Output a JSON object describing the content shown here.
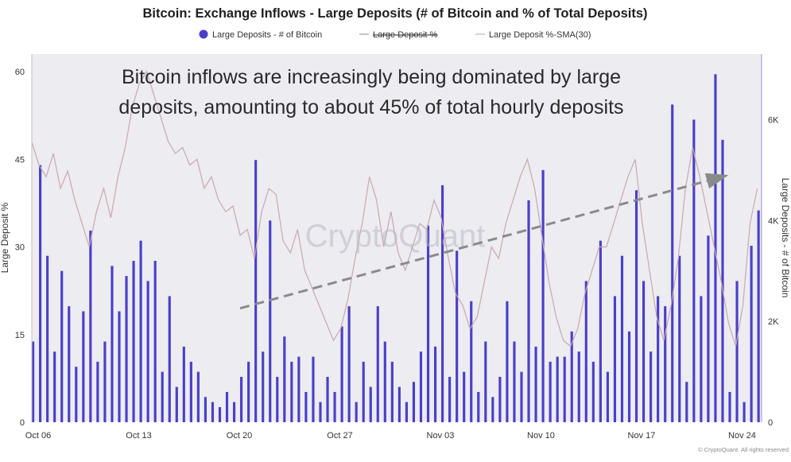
{
  "chart_data": {
    "type": "bar+line",
    "title": "Bitcoin: Exchange Inflows - Large Deposits (# of Bitcoin and % of Total Deposits)",
    "legend": {
      "placement": "top-center",
      "entries": [
        {
          "label": "Large Deposits - # of Bitcoin",
          "color": "#4b3fc8",
          "marker": "dot"
        },
        {
          "label": "Large Deposit %",
          "color": "#c9a8ad",
          "marker": "line",
          "struck": true
        },
        {
          "label": "Large Deposit %-SMA(30)",
          "color": "#d8c0c4",
          "marker": "line"
        }
      ]
    },
    "y_left": {
      "label": "Large Deposit %",
      "range": [
        0,
        63
      ],
      "ticks": [
        "0",
        "15",
        "30",
        "45",
        "60"
      ]
    },
    "y_right": {
      "label": "Large Deposits - # of Bitcoin",
      "range": [
        0,
        7300
      ],
      "ticks": [
        "0",
        "2K",
        "4K",
        "6K"
      ]
    },
    "x_ticks": [
      "Oct 06",
      "Oct 13",
      "Oct 20",
      "Oct 27",
      "Nov 03",
      "Nov 10",
      "Nov 17",
      "Nov 24"
    ],
    "x_tick_days": [
      0,
      7,
      14,
      21,
      28,
      35,
      42,
      49
    ],
    "x_range_days": [
      0,
      50.8
    ],
    "grid": false,
    "annotation_lines": [
      "Bitcoin inflows are increasingly being dominated by large",
      "deposits, amounting to about 45% of total hourly deposits"
    ],
    "trend_arrow": {
      "from": {
        "day": 14.5,
        "pct": 19.5
      },
      "to": {
        "day": 48.5,
        "pct": 42.3
      },
      "color": "#8a8a8a"
    },
    "watermark": "CryptoQuant",
    "copyright": "© CryptoQuant. All rights reserved",
    "series": [
      {
        "name": "Large Deposit %",
        "axis": "left",
        "type": "line",
        "color": "#c9a8ad",
        "x_days": [
          0,
          0.5,
          1,
          1.5,
          2,
          2.5,
          3,
          3.5,
          4,
          4.5,
          5,
          5.5,
          6,
          6.5,
          7,
          7.5,
          8,
          8.5,
          9,
          9.5,
          10,
          10.5,
          11,
          11.5,
          12,
          12.5,
          13,
          13.5,
          14,
          14.5,
          15,
          15.5,
          16,
          16.5,
          17,
          17.5,
          18,
          18.5,
          19,
          19.5,
          20,
          20.5,
          21,
          21.5,
          22,
          22.5,
          23,
          23.5,
          24,
          24.5,
          25,
          25.5,
          26,
          26.5,
          27,
          27.5,
          28,
          28.5,
          29,
          29.5,
          30,
          30.5,
          31,
          31.5,
          32,
          32.5,
          33,
          33.5,
          34,
          34.5,
          35,
          35.5,
          36,
          36.5,
          37,
          37.5,
          38,
          38.5,
          39,
          39.5,
          40,
          40.5,
          41,
          41.5,
          42,
          42.5,
          43,
          43.5,
          44,
          44.5,
          45,
          45.5,
          46,
          46.5,
          47,
          47.5,
          48,
          48.5,
          49,
          49.5,
          50,
          50.5
        ],
        "values": [
          48,
          44,
          42,
          46,
          40,
          43,
          38,
          34,
          30,
          36,
          40,
          35,
          42,
          47,
          54,
          58,
          60,
          56,
          52,
          48,
          46,
          47,
          44,
          45,
          40,
          42,
          38,
          36,
          37,
          32,
          33,
          28,
          36,
          40,
          39,
          31,
          29,
          33,
          26,
          23,
          20,
          17,
          14,
          16,
          21,
          28,
          34,
          42,
          38,
          30,
          36,
          29,
          26,
          30,
          34,
          33,
          38,
          35,
          28,
          22,
          20,
          16,
          18,
          24,
          30,
          28,
          34,
          38,
          42,
          45,
          40,
          32,
          24,
          18,
          14,
          13,
          16,
          22,
          26,
          30,
          30,
          34,
          38,
          42,
          45,
          34,
          26,
          18,
          14,
          20,
          28,
          40,
          47,
          42,
          36,
          30,
          24,
          17,
          13,
          20,
          34,
          40
        ]
      },
      {
        "name": "Large Deposits - # of Bitcoin",
        "axis": "right",
        "type": "bar",
        "color": "#4b3fc8",
        "x_days": [
          0,
          0.5,
          1,
          1.5,
          2,
          2.5,
          3,
          3.5,
          4,
          4.5,
          5,
          5.5,
          6,
          6.5,
          7,
          7.5,
          8,
          8.5,
          9,
          9.5,
          10,
          10.5,
          11,
          11.5,
          12,
          12.5,
          13,
          13.5,
          14,
          14.5,
          15,
          15.5,
          16,
          16.5,
          17,
          17.5,
          18,
          18.5,
          19,
          19.5,
          20,
          20.5,
          21,
          21.5,
          22,
          22.5,
          23,
          23.5,
          24,
          24.5,
          25,
          25.5,
          26,
          26.5,
          27,
          27.5,
          28,
          28.5,
          29,
          29.5,
          30,
          30.5,
          31,
          31.5,
          32,
          32.5,
          33,
          33.5,
          34,
          34.5,
          35,
          35.5,
          36,
          36.5,
          37,
          37.5,
          38,
          38.5,
          39,
          39.5,
          40,
          40.5,
          41,
          41.5,
          42,
          42.5,
          43,
          43.5,
          44,
          44.5,
          45,
          45.5,
          46,
          46.5,
          47,
          47.5,
          48,
          48.5,
          49,
          49.5,
          50,
          50.5
        ],
        "values": [
          1600,
          5100,
          3300,
          1400,
          3000,
          2300,
          1100,
          2200,
          3800,
          1200,
          1600,
          3100,
          2200,
          2900,
          3200,
          3600,
          2800,
          3200,
          1000,
          2500,
          700,
          1500,
          1200,
          1000,
          500,
          400,
          300,
          600,
          400,
          900,
          1200,
          5200,
          1400,
          4000,
          900,
          1700,
          1200,
          1300,
          600,
          1300,
          400,
          900,
          600,
          1900,
          2300,
          400,
          1200,
          700,
          2300,
          1600,
          1200,
          700,
          400,
          800,
          1400,
          3900,
          1500,
          4700,
          900,
          3400,
          1000,
          2400,
          600,
          1600,
          500,
          900,
          2400,
          1600,
          1000,
          4400,
          1500,
          5000,
          1200,
          1300,
          1300,
          1800,
          1400,
          2800,
          1200,
          3600,
          1000,
          2500,
          3300,
          1800,
          4600,
          2800,
          1400,
          2500,
          2300,
          6300,
          3300,
          800,
          6000,
          2500,
          3700,
          6900,
          5600,
          600,
          2800,
          400,
          3500,
          4200
        ]
      }
    ]
  }
}
